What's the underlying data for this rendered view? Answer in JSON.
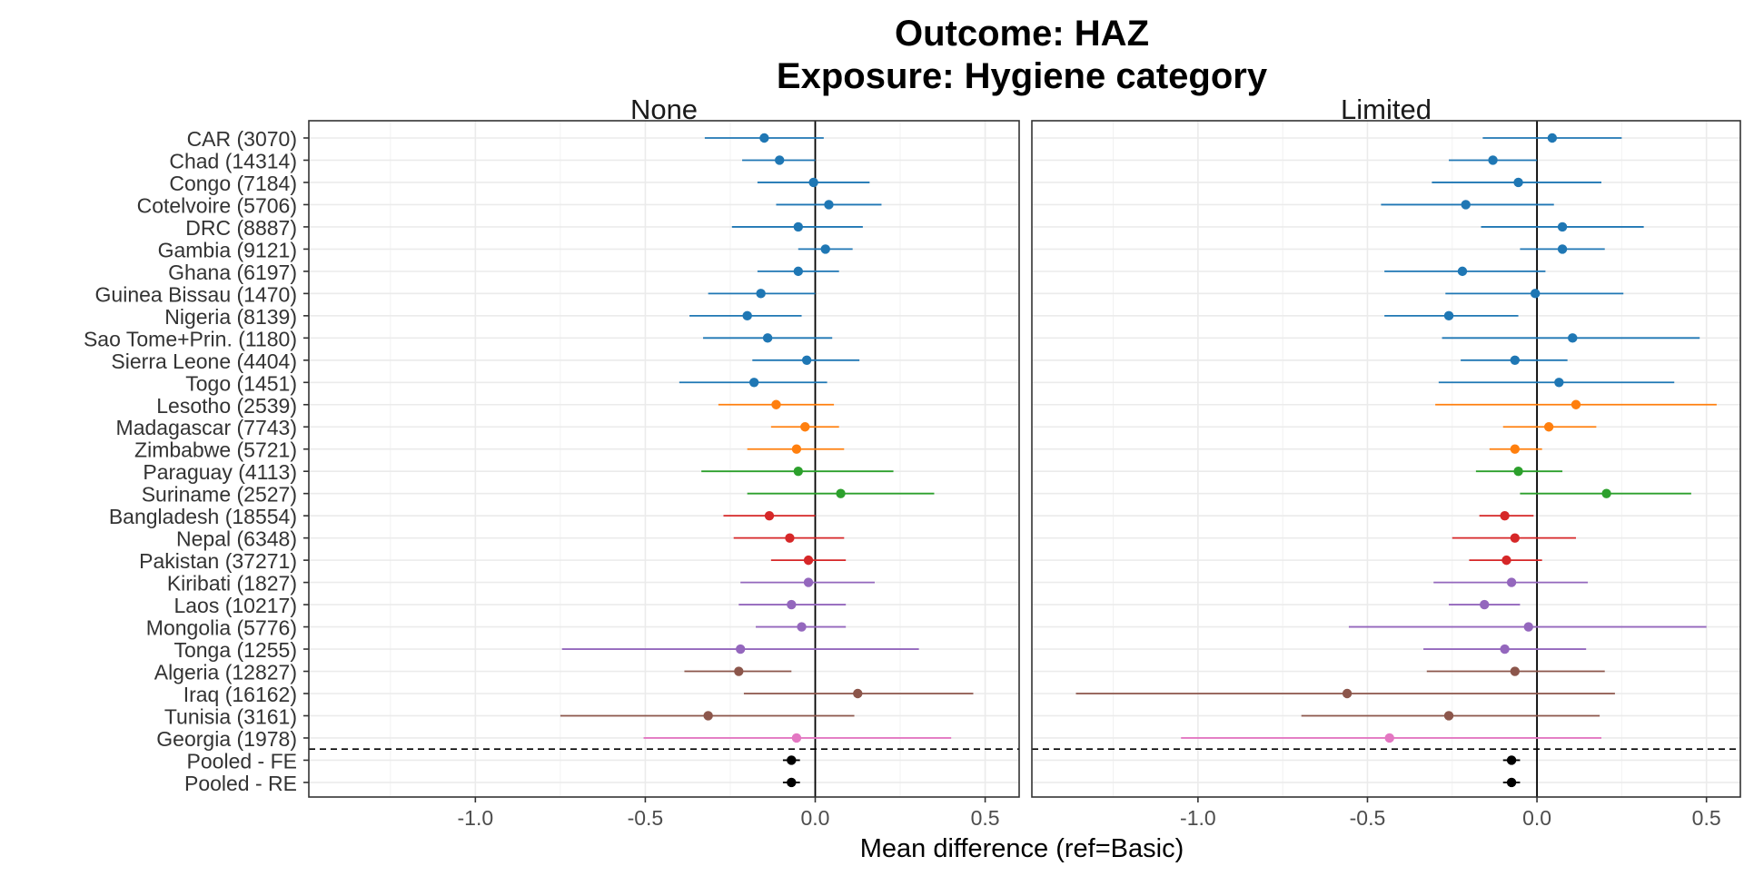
{
  "title": "Outcome: HAZ",
  "subtitle": "Exposure: Hygiene category",
  "xlabel": "Mean difference (ref=Basic)",
  "chart_data": {
    "type": "forest",
    "title": "Outcome: HAZ",
    "subtitle": "Exposure: Hygiene category",
    "xlabel": "Mean difference (ref=Basic)",
    "ylabel": "",
    "xlim": [
      -1.49,
      0.6
    ],
    "xticks": [
      -1.0,
      -0.5,
      0.0,
      0.5
    ],
    "xtick_labels": [
      "-1.0",
      "-0.5",
      "0.0",
      "0.5"
    ],
    "grid": true,
    "reference_line_x": 0,
    "separator_after_row": 27,
    "colors": {
      "region1": "#1f77b4",
      "region2": "#ff7f0e",
      "region3": "#2ca02c",
      "region4": "#d62728",
      "region5": "#9467bd",
      "region6": "#8c564b",
      "region7": "#e377c2",
      "pooled": "#000000"
    },
    "categories": [
      "CAR (3070)",
      "Chad (14314)",
      "Congo (7184)",
      "Cotelvoire (5706)",
      "DRC (8887)",
      "Gambia (9121)",
      "Ghana (6197)",
      "Guinea Bissau (1470)",
      "Nigeria (8139)",
      "Sao Tome+Prin. (1180)",
      "Sierra Leone (4404)",
      "Togo (1451)",
      "Lesotho (2539)",
      "Madagascar (7743)",
      "Zimbabwe (5721)",
      "Paraguay (4113)",
      "Suriname (2527)",
      "Bangladesh (18554)",
      "Nepal (6348)",
      "Pakistan (37271)",
      "Kiribati (1827)",
      "Laos (10217)",
      "Mongolia (5776)",
      "Tonga (1255)",
      "Algeria (12827)",
      "Iraq (16162)",
      "Tunisia (3161)",
      "Georgia (1978)",
      "Pooled - FE",
      "Pooled - RE"
    ],
    "row_colors": [
      "region1",
      "region1",
      "region1",
      "region1",
      "region1",
      "region1",
      "region1",
      "region1",
      "region1",
      "region1",
      "region1",
      "region1",
      "region2",
      "region2",
      "region2",
      "region3",
      "region3",
      "region4",
      "region4",
      "region4",
      "region5",
      "region5",
      "region5",
      "region5",
      "region6",
      "region6",
      "region6",
      "region7",
      "pooled",
      "pooled"
    ],
    "panels": [
      {
        "name": "None",
        "estimates": [
          -0.15,
          -0.105,
          -0.005,
          0.04,
          -0.05,
          0.03,
          -0.05,
          -0.16,
          -0.2,
          -0.14,
          -0.025,
          -0.18,
          -0.115,
          -0.03,
          -0.055,
          -0.05,
          0.075,
          -0.135,
          -0.075,
          -0.02,
          -0.02,
          -0.07,
          -0.04,
          -0.22,
          -0.225,
          0.125,
          -0.315,
          -0.055,
          -0.07,
          -0.07
        ],
        "lower": [
          -0.325,
          -0.215,
          -0.17,
          -0.115,
          -0.245,
          -0.05,
          -0.17,
          -0.315,
          -0.37,
          -0.33,
          -0.185,
          -0.4,
          -0.285,
          -0.13,
          -0.2,
          -0.335,
          -0.2,
          -0.27,
          -0.24,
          -0.13,
          -0.22,
          -0.225,
          -0.175,
          -0.745,
          -0.385,
          -0.21,
          -0.75,
          -0.505,
          -0.095,
          -0.095
        ],
        "upper": [
          0.025,
          0.0,
          0.16,
          0.195,
          0.14,
          0.11,
          0.07,
          0.0,
          -0.04,
          0.05,
          0.13,
          0.035,
          0.055,
          0.07,
          0.085,
          0.23,
          0.35,
          0.0,
          0.085,
          0.09,
          0.175,
          0.09,
          0.09,
          0.305,
          -0.07,
          0.465,
          0.115,
          0.4,
          -0.045,
          -0.045
        ]
      },
      {
        "name": "Limited",
        "estimates": [
          0.045,
          -0.13,
          -0.055,
          -0.21,
          0.075,
          0.075,
          -0.22,
          -0.005,
          -0.26,
          0.105,
          -0.065,
          0.065,
          0.115,
          0.035,
          -0.065,
          -0.055,
          0.205,
          -0.095,
          -0.065,
          -0.09,
          -0.075,
          -0.155,
          -0.025,
          -0.095,
          -0.065,
          -0.56,
          -0.26,
          -0.435,
          -0.075,
          -0.075
        ],
        "lower": [
          -0.16,
          -0.26,
          -0.31,
          -0.46,
          -0.165,
          -0.05,
          -0.45,
          -0.27,
          -0.45,
          -0.28,
          -0.225,
          -0.29,
          -0.3,
          -0.1,
          -0.14,
          -0.18,
          -0.05,
          -0.17,
          -0.25,
          -0.2,
          -0.305,
          -0.26,
          -0.555,
          -0.335,
          -0.325,
          -1.36,
          -0.695,
          -1.05,
          -0.1,
          -0.1
        ],
        "upper": [
          0.25,
          0.0,
          0.19,
          0.05,
          0.315,
          0.2,
          0.025,
          0.255,
          -0.055,
          0.48,
          0.09,
          0.405,
          0.53,
          0.175,
          0.015,
          0.075,
          0.455,
          -0.01,
          0.115,
          0.015,
          0.15,
          -0.05,
          0.5,
          0.145,
          0.2,
          0.23,
          0.185,
          0.19,
          -0.05,
          -0.05
        ]
      }
    ]
  }
}
